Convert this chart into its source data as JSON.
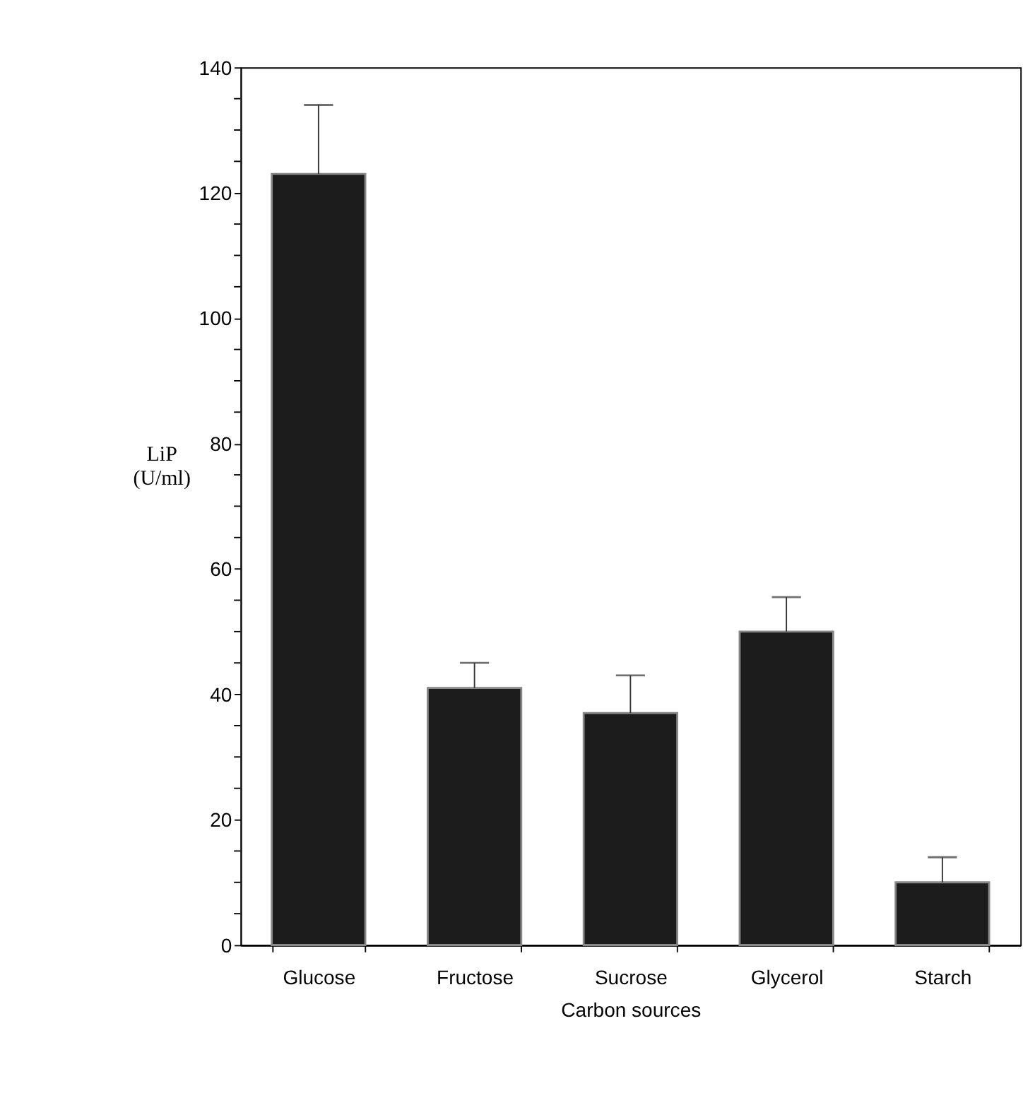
{
  "chart_data": {
    "type": "bar",
    "xlabel": "Carbon sources",
    "ylabel": "LiP (U/ml)",
    "categories": [
      "Glucose",
      "Fructose",
      "Sucrose",
      "Glycerol",
      "Starch"
    ],
    "values": [
      123,
      41,
      37,
      50,
      10
    ],
    "errors": [
      [
        123,
        134
      ],
      [
        41,
        45
      ],
      [
        37,
        43
      ],
      [
        50,
        55.5
      ],
      [
        10,
        14
      ]
    ],
    "color": "#1c1c1c",
    "ylim": [
      0,
      140
    ],
    "yticks": [
      0,
      {
        "value": 5,
        "label": null
      },
      {
        "value": 10,
        "label": null
      },
      {
        "value": 15,
        "label": null
      },
      20,
      {
        "value": 25,
        "label": null
      },
      {
        "value": 30,
        "label": null
      },
      {
        "value": 35,
        "label": null
      },
      40,
      {
        "value": 45,
        "label": null
      },
      {
        "value": 50,
        "label": null
      },
      {
        "value": 55,
        "label": null
      },
      60,
      {
        "value": 65,
        "label": null
      },
      {
        "value": 70,
        "label": null
      },
      {
        "value": 75,
        "label": null
      },
      80,
      {
        "value": 85,
        "label": null
      },
      {
        "value": 90,
        "label": null
      },
      {
        "value": 95,
        "label": null
      },
      100,
      {
        "value": 105,
        "label": null
      },
      {
        "value": 110,
        "label": null
      },
      {
        "value": 115,
        "label": null
      },
      120,
      {
        "value": 125,
        "label": null
      },
      {
        "value": 130,
        "label": null
      },
      {
        "value": 135,
        "label": null
      },
      140
    ],
    "grid": false
  }
}
